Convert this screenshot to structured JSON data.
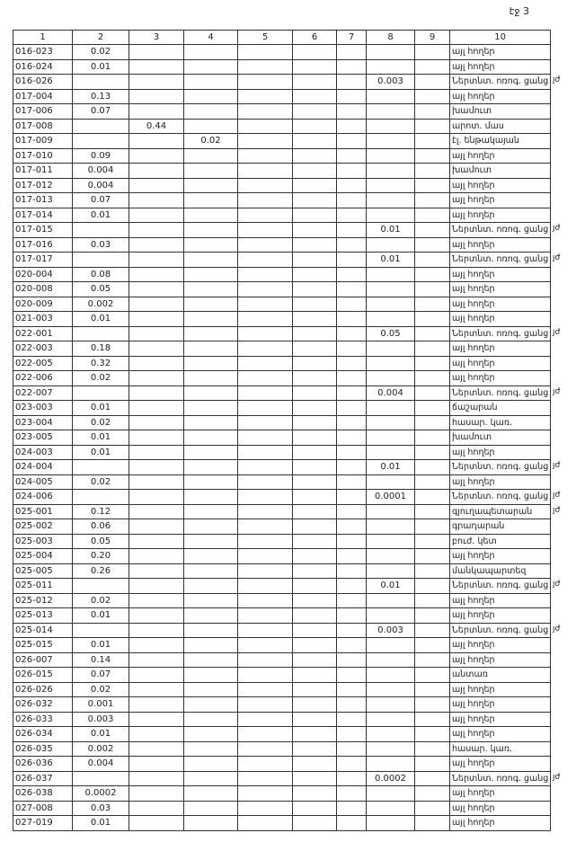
{
  "page_label": "էջ 3",
  "columns": [
    "1",
    "2",
    "3",
    "4",
    "5",
    "6",
    "7",
    "8",
    "9",
    "10"
  ],
  "rows": [
    [
      "016-023",
      "0.02",
      "",
      "",
      "",
      "",
      "",
      "",
      "",
      "այլ հողեր",
      ""
    ],
    [
      "016-024",
      "0.01",
      "",
      "",
      "",
      "",
      "",
      "",
      "",
      "այլ հողեր",
      ""
    ],
    [
      "016-026",
      "",
      "",
      "",
      "",
      "",
      "",
      "0.003",
      "",
      "Ներտնտ. ոռոգ. ցանց",
      "յժ"
    ],
    [
      "017-004",
      "0.13",
      "",
      "",
      "",
      "",
      "",
      "",
      "",
      "այլ հողեր",
      ""
    ],
    [
      "017-006",
      "0.07",
      "",
      "",
      "",
      "",
      "",
      "",
      "",
      "խամուտ",
      ""
    ],
    [
      "017-008",
      "",
      "0.44",
      "",
      "",
      "",
      "",
      "",
      "",
      "արոտ. մաս",
      ""
    ],
    [
      "017-009",
      "",
      "",
      "0.02",
      "",
      "",
      "",
      "",
      "",
      "էլ. ենթակայան",
      ""
    ],
    [
      "017-010",
      "0.09",
      "",
      "",
      "",
      "",
      "",
      "",
      "",
      "այլ հողեր",
      ""
    ],
    [
      "017-011",
      "0.004",
      "",
      "",
      "",
      "",
      "",
      "",
      "",
      "խամուտ",
      ""
    ],
    [
      "017-012",
      "0.004",
      "",
      "",
      "",
      "",
      "",
      "",
      "",
      "այլ հողեր",
      ""
    ],
    [
      "017-013",
      "0.07",
      "",
      "",
      "",
      "",
      "",
      "",
      "",
      "այլ հողեր",
      ""
    ],
    [
      "017-014",
      "0.01",
      "",
      "",
      "",
      "",
      "",
      "",
      "",
      "այլ հողեր",
      ""
    ],
    [
      "017-015",
      "",
      "",
      "",
      "",
      "",
      "",
      "0.01",
      "",
      "Ներտնտ. ոռոգ. ցանց",
      "յժ"
    ],
    [
      "017-016",
      "0.03",
      "",
      "",
      "",
      "",
      "",
      "",
      "",
      "այլ հողեր",
      ""
    ],
    [
      "017-017",
      "",
      "",
      "",
      "",
      "",
      "",
      "0.01",
      "",
      "Ներտնտ. ոռոգ. ցանց",
      "յժ"
    ],
    [
      "020-004",
      "0.08",
      "",
      "",
      "",
      "",
      "",
      "",
      "",
      "այլ հողեր",
      ""
    ],
    [
      "020-008",
      "0.05",
      "",
      "",
      "",
      "",
      "",
      "",
      "",
      "այլ հողեր",
      ""
    ],
    [
      "020-009",
      "0.002",
      "",
      "",
      "",
      "",
      "",
      "",
      "",
      "այլ հողեր",
      ""
    ],
    [
      "021-003",
      "0.01",
      "",
      "",
      "",
      "",
      "",
      "",
      "",
      "այլ հողեր",
      ""
    ],
    [
      "022-001",
      "",
      "",
      "",
      "",
      "",
      "",
      "0.05",
      "",
      "Ներտնտ. ոռոգ. ցանց",
      "յժ"
    ],
    [
      "022-003",
      "0.18",
      "",
      "",
      "",
      "",
      "",
      "",
      "",
      "այլ հողեր",
      ""
    ],
    [
      "022-005",
      "0.32",
      "",
      "",
      "",
      "",
      "",
      "",
      "",
      "այլ հողեր",
      ""
    ],
    [
      "022-006",
      "0.02",
      "",
      "",
      "",
      "",
      "",
      "",
      "",
      "այլ հողեր",
      ""
    ],
    [
      "022-007",
      "",
      "",
      "",
      "",
      "",
      "",
      "0.004",
      "",
      "Ներտնտ. ոռոգ. ցանց",
      "յժ"
    ],
    [
      "023-003",
      "0.01",
      "",
      "",
      "",
      "",
      "",
      "",
      "",
      "ճաշարան",
      ""
    ],
    [
      "023-004",
      "0.02",
      "",
      "",
      "",
      "",
      "",
      "",
      "",
      "հասար. կառ.",
      ""
    ],
    [
      "023-005",
      "0.01",
      "",
      "",
      "",
      "",
      "",
      "",
      "",
      "խամուտ",
      ""
    ],
    [
      "024-003",
      "0.01",
      "",
      "",
      "",
      "",
      "",
      "",
      "",
      "այլ հողեր",
      ""
    ],
    [
      "024-004",
      "",
      "",
      "",
      "",
      "",
      "",
      "0.01",
      "",
      "Ներտնտ. ոռոգ. ցանց",
      "յժ"
    ],
    [
      "024-005",
      "0.02",
      "",
      "",
      "",
      "",
      "",
      "",
      "",
      "այլ հողեր",
      ""
    ],
    [
      "024-006",
      "",
      "",
      "",
      "",
      "",
      "",
      "0.0001",
      "",
      "Ներտնտ. ոռոգ. ցանց",
      "յժ"
    ],
    [
      "025-001",
      "0.12",
      "",
      "",
      "",
      "",
      "",
      "",
      "",
      "գյուղապետարան",
      "յժ"
    ],
    [
      "025-002",
      "0.06",
      "",
      "",
      "",
      "",
      "",
      "",
      "",
      "գրադարան",
      ""
    ],
    [
      "025-003",
      "0.05",
      "",
      "",
      "",
      "",
      "",
      "",
      "",
      "բուժ. կետ",
      ""
    ],
    [
      "025-004",
      "0.20",
      "",
      "",
      "",
      "",
      "",
      "",
      "",
      "այլ հողեր",
      ""
    ],
    [
      "025-005",
      "0.26",
      "",
      "",
      "",
      "",
      "",
      "",
      "",
      "մանկապարտեզ",
      ""
    ],
    [
      "025-011",
      "",
      "",
      "",
      "",
      "",
      "",
      "0.01",
      "",
      "Ներտնտ. ոռոգ. ցանց",
      "յժ"
    ],
    [
      "025-012",
      "0.02",
      "",
      "",
      "",
      "",
      "",
      "",
      "",
      "այլ հողեր",
      ""
    ],
    [
      "025-013",
      "0.01",
      "",
      "",
      "",
      "",
      "",
      "",
      "",
      "այլ հողեր",
      ""
    ],
    [
      "025-014",
      "",
      "",
      "",
      "",
      "",
      "",
      "0.003",
      "",
      "Ներտնտ. ոռոգ. ցանց",
      "յժ"
    ],
    [
      "025-015",
      "0.01",
      "",
      "",
      "",
      "",
      "",
      "",
      "",
      "այլ հողեր",
      ""
    ],
    [
      "026-007",
      "0.14",
      "",
      "",
      "",
      "",
      "",
      "",
      "",
      "այլ հողեր",
      ""
    ],
    [
      "026-015",
      "0.07",
      "",
      "",
      "",
      "",
      "",
      "",
      "",
      "անտառ",
      ""
    ],
    [
      "026-026",
      "0.02",
      "",
      "",
      "",
      "",
      "",
      "",
      "",
      "այլ հողեր",
      ""
    ],
    [
      "026-032",
      "0.001",
      "",
      "",
      "",
      "",
      "",
      "",
      "",
      "այլ հողեր",
      ""
    ],
    [
      "026-033",
      "0.003",
      "",
      "",
      "",
      "",
      "",
      "",
      "",
      "այլ հողեր",
      ""
    ],
    [
      "026-034",
      "0.01",
      "",
      "",
      "",
      "",
      "",
      "",
      "",
      "այլ հողեր",
      ""
    ],
    [
      "026-035",
      "0.002",
      "",
      "",
      "",
      "",
      "",
      "",
      "",
      "հասար. կառ.",
      ""
    ],
    [
      "026-036",
      "0.004",
      "",
      "",
      "",
      "",
      "",
      "",
      "",
      "այլ հողեր",
      ""
    ],
    [
      "026-037",
      "",
      "",
      "",
      "",
      "",
      "",
      "0.0002",
      "",
      "Ներտնտ. ոռոգ. ցանց",
      "յժ"
    ],
    [
      "026-038",
      "0.0002",
      "",
      "",
      "",
      "",
      "",
      "",
      "",
      "այլ հողեր",
      ""
    ],
    [
      "027-008",
      "0.03",
      "",
      "",
      "",
      "",
      "",
      "",
      "",
      "այլ հողեր",
      ""
    ],
    [
      "027-019",
      "0.01",
      "",
      "",
      "",
      "",
      "",
      "",
      "",
      "այլ հողեր",
      ""
    ]
  ]
}
